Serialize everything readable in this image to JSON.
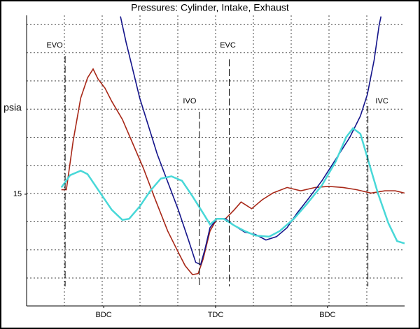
{
  "chart_data": {
    "type": "line",
    "title": "Pressures: Cylinder, Intake, Exhaust",
    "y_label": "psia",
    "xlim": [
      56,
      664
    ],
    "ylim": [
      5,
      31
    ],
    "yticks": [
      15
    ],
    "xticks": [
      {
        "value": 180,
        "label": "BDC"
      },
      {
        "value": 360,
        "label": "TDC"
      },
      {
        "value": 540,
        "label": "BDC"
      }
    ],
    "annotations": [
      {
        "label": "EVO",
        "x": 118
      },
      {
        "label": "EVC",
        "x": 382
      },
      {
        "label": "IVO",
        "x": 334
      },
      {
        "label": "IVC",
        "x": 605
      }
    ],
    "series": [
      {
        "color": "#a82818",
        "x": [
          112,
          120,
          131,
          143,
          154,
          163,
          171,
          182,
          193,
          210,
          227,
          244,
          261,
          283,
          300,
          311,
          323,
          332,
          340,
          351,
          362,
          376,
          390,
          401,
          418,
          435,
          452,
          475,
          497,
          520,
          542,
          565,
          587,
          610,
          632,
          649,
          664
        ],
        "values": [
          15.4,
          15.4,
          19.8,
          23.6,
          25.4,
          26.2,
          25.3,
          24.5,
          23.3,
          21.7,
          19.5,
          17.3,
          14.8,
          11.7,
          9.8,
          8.6,
          7.8,
          7.9,
          9.2,
          11.7,
          12.8,
          12.8,
          13.6,
          14.3,
          13.7,
          14.5,
          15.1,
          15.6,
          15.3,
          15.6,
          15.7,
          15.6,
          15.4,
          15.1,
          15.3,
          15.3,
          15.1
        ]
      },
      {
        "color": "#14148a",
        "x": [
          207,
          216,
          227,
          238,
          252,
          266,
          283,
          300,
          317,
          328,
          336,
          343,
          351,
          362,
          376,
          390,
          407,
          424,
          441,
          458,
          475,
          491,
          508,
          531,
          553,
          576,
          593,
          604,
          615,
          623,
          626
        ],
        "values": [
          30.9,
          28.6,
          26.1,
          23.6,
          21.1,
          18.6,
          16.1,
          13.6,
          10.8,
          8.9,
          8.7,
          10.1,
          12.0,
          12.8,
          12.8,
          12.2,
          11.6,
          11.4,
          10.9,
          11.2,
          12.0,
          13.3,
          14.5,
          16.2,
          18.1,
          20.1,
          22.0,
          23.9,
          27.0,
          30.1,
          30.9
        ]
      },
      {
        "color": "#48d8d8",
        "x": [
          112,
          126,
          143,
          154,
          171,
          193,
          210,
          221,
          238,
          255,
          272,
          289,
          306,
          323,
          340,
          351,
          362,
          373,
          390,
          407,
          424,
          446,
          463,
          486,
          508,
          531,
          553,
          570,
          581,
          593,
          604,
          621,
          638,
          652,
          664
        ],
        "values": [
          15.6,
          16.7,
          17.1,
          16.8,
          15.4,
          13.6,
          12.7,
          12.8,
          13.9,
          15.3,
          16.4,
          16.6,
          16.2,
          14.8,
          13.3,
          12.3,
          12.8,
          12.8,
          12.2,
          11.7,
          11.3,
          11.2,
          11.7,
          12.8,
          14.2,
          15.8,
          17.9,
          20.1,
          20.9,
          20.4,
          18.3,
          15.1,
          12.4,
          10.8,
          10.6
        ]
      }
    ]
  }
}
